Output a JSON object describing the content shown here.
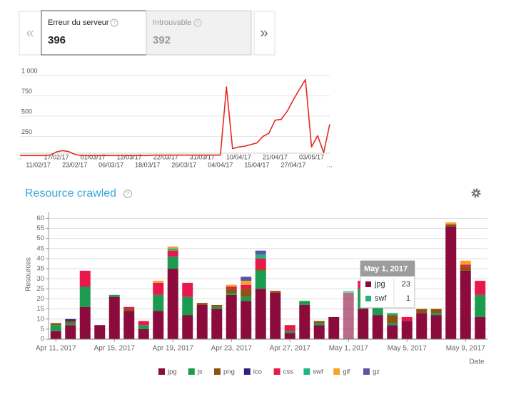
{
  "tabs": [
    {
      "label": "Erreur du serveur",
      "value": 396
    },
    {
      "label": "Introuvable",
      "value": 392
    }
  ],
  "nav": {
    "prev": "«",
    "next": "»"
  },
  "chart_data": [
    {
      "type": "line",
      "color": "#e52b1f",
      "categories": [
        "..",
        null,
        null,
        "11/02/17",
        null,
        null,
        "17/02/17",
        null,
        null,
        "23/02/17",
        null,
        null,
        "01/03/17",
        null,
        null,
        "06/03/17",
        null,
        null,
        "12/03/17",
        null,
        null,
        "18/03/17",
        null,
        null,
        "22/03/17",
        null,
        null,
        "26/03/17",
        null,
        null,
        "31/03/17",
        null,
        null,
        "04/04/17",
        null,
        null,
        "10/04/17",
        null,
        null,
        "15/04/17",
        null,
        null,
        "21/04/17",
        null,
        null,
        "27/04/17",
        null,
        null,
        "03/05/17",
        null,
        null,
        "..."
      ],
      "values": [
        15,
        15,
        15,
        15,
        15,
        20,
        60,
        75,
        65,
        30,
        15,
        15,
        15,
        15,
        15,
        15,
        15,
        15,
        15,
        15,
        15,
        15,
        20,
        20,
        20,
        20,
        20,
        20,
        20,
        20,
        20,
        20,
        20,
        20,
        860,
        100,
        120,
        130,
        150,
        170,
        250,
        290,
        450,
        460,
        560,
        700,
        830,
        950,
        120,
        260,
        50,
        400
      ],
      "ylim": [
        0,
        1000
      ],
      "yticks": [
        250,
        500,
        750,
        {
          "value": 1000,
          "label": "1 000"
        }
      ],
      "grid": true
    },
    {
      "type": "stacked-bar",
      "title": "Resource crawled",
      "y_label": "Resources",
      "x_label": "Date",
      "categories": [
        "Apr 11, 2017",
        null,
        null,
        null,
        "Apr 15, 2017",
        null,
        null,
        null,
        "Apr 19, 2017",
        null,
        null,
        null,
        "Apr 23, 2017",
        null,
        null,
        null,
        "Apr 27, 2017",
        null,
        null,
        null,
        "May 1, 2017",
        null,
        null,
        null,
        "May 5, 2017",
        null,
        null,
        null,
        "May 9, 2017",
        null
      ],
      "series": [
        {
          "name": "jpg",
          "color": "#8a0b3c",
          "values": [
            4,
            7,
            16,
            7,
            21,
            14,
            5,
            14,
            35,
            12,
            17,
            15,
            22,
            19,
            25,
            23,
            3,
            17,
            7,
            11,
            23,
            15,
            12,
            7,
            9,
            13,
            12,
            56,
            34,
            11
          ]
        },
        {
          "name": "js",
          "color": "#1b9b4f",
          "values": [
            3,
            1,
            10,
            0,
            1,
            0,
            2,
            8,
            6,
            9,
            0,
            1,
            1,
            2,
            9,
            0,
            1,
            2,
            1,
            0,
            0,
            10,
            4,
            1,
            0,
            0,
            1,
            0,
            0,
            11
          ]
        },
        {
          "name": "png",
          "color": "#8c5410",
          "values": [
            1,
            1,
            0,
            0,
            0,
            1,
            0,
            0,
            0,
            0,
            1,
            1,
            2,
            4,
            1,
            1,
            0,
            0,
            1,
            0,
            0,
            0,
            0,
            4,
            0,
            2,
            2,
            1,
            2,
            0
          ]
        },
        {
          "name": "ico",
          "color": "#2e2280",
          "values": [
            0,
            1,
            0,
            0,
            0,
            0,
            0,
            0,
            0,
            0,
            0,
            0,
            0,
            0,
            0,
            0,
            0,
            0,
            0,
            0,
            0,
            0,
            0,
            0,
            0,
            0,
            0,
            0,
            0,
            0
          ]
        },
        {
          "name": "css",
          "color": "#e8184b",
          "values": [
            0,
            0,
            8,
            0,
            0,
            1,
            2,
            6,
            3,
            7,
            0,
            0,
            1,
            2,
            5,
            0,
            3,
            0,
            0,
            0,
            0,
            4,
            9,
            0,
            2,
            0,
            0,
            0,
            1,
            7
          ]
        },
        {
          "name": "swf",
          "color": "#22b57b",
          "values": [
            0,
            0,
            0,
            0,
            0,
            0,
            0,
            0,
            1,
            0,
            0,
            0,
            0,
            0,
            2,
            0,
            0,
            0,
            0,
            0,
            1,
            0,
            0,
            1,
            0,
            0,
            0,
            0,
            0,
            0
          ]
        },
        {
          "name": "gif",
          "color": "#f7a128",
          "values": [
            0,
            0,
            0,
            0,
            0,
            0,
            0,
            1,
            1,
            0,
            0,
            0,
            1,
            2,
            0,
            0,
            0,
            0,
            0,
            0,
            0,
            0,
            0,
            0,
            0,
            0,
            0,
            1,
            2,
            0
          ]
        },
        {
          "name": "gz",
          "color": "#5a55a8",
          "values": [
            0,
            0,
            0,
            0,
            0,
            0,
            0,
            0,
            0,
            0,
            0,
            0,
            0,
            2,
            2,
            0,
            0,
            0,
            0,
            0,
            0,
            0,
            0,
            0,
            0,
            0,
            0,
            0,
            0,
            0
          ]
        }
      ],
      "ylim": [
        0,
        63
      ],
      "yticks": [
        0,
        5,
        10,
        15,
        20,
        25,
        30,
        35,
        40,
        45,
        50,
        55,
        60
      ],
      "grid": true,
      "legend": "bottom"
    }
  ]
}
